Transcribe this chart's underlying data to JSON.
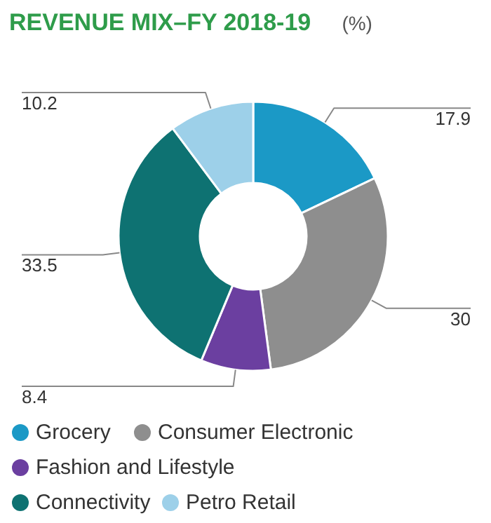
{
  "chart_data": {
    "type": "donut",
    "title": "REVENUE MIX–FY 2018-19",
    "subtitle": "(%)",
    "categories": [
      "Grocery",
      "Consumer Electronic",
      "Fashion and Lifestyle",
      "Connectivity",
      "Petro Retail"
    ],
    "values": [
      17.9,
      30,
      8.4,
      33.5,
      10.2
    ],
    "colors": [
      "#1b99c6",
      "#8e8e8e",
      "#6b3fa0",
      "#0e7272",
      "#9dd0e9"
    ],
    "data_labels": true,
    "legend": "bottom"
  }
}
